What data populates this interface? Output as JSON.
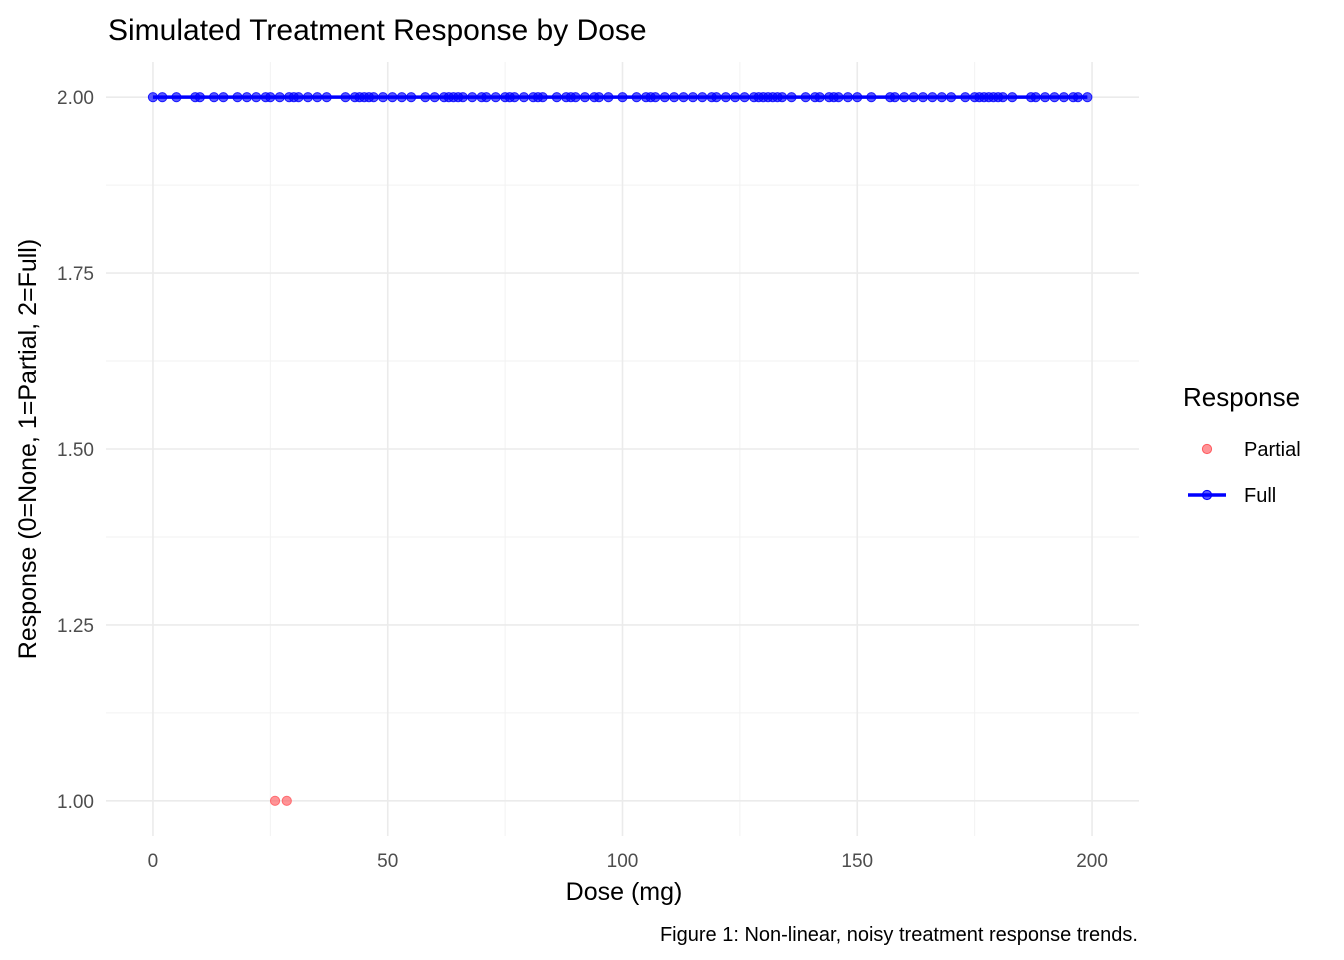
{
  "chart_data": {
    "type": "scatter",
    "title": "Simulated Treatment Response by Dose",
    "xlabel": "Dose (mg)",
    "ylabel": "Response (0=None, 1=Partial, 2=Full)",
    "caption": "Figure 1: Non-linear, noisy treatment response trends.",
    "xlim": [
      -10,
      210
    ],
    "ylim": [
      0.95,
      2.05
    ],
    "x_ticks": [
      0,
      50,
      100,
      150,
      200
    ],
    "x_tick_labels": [
      "0",
      "50",
      "100",
      "150",
      "200"
    ],
    "y_ticks": [
      1.0,
      1.25,
      1.5,
      1.75,
      2.0
    ],
    "y_tick_labels": [
      "1.00",
      "1.25",
      "1.50",
      "1.75",
      "2.00"
    ],
    "grid": true,
    "legend": {
      "title": "Response",
      "position": "right"
    },
    "series": [
      {
        "name": "Partial",
        "color": "#ff5a5f",
        "line": false,
        "x": [
          26,
          28.5
        ],
        "y": [
          1,
          1
        ]
      },
      {
        "name": "Full",
        "color": "#0000ff",
        "line": true,
        "x": [
          0,
          2,
          5,
          9,
          10,
          13,
          15,
          18,
          20,
          22,
          24,
          25,
          27,
          29,
          30,
          31,
          33,
          35,
          37,
          41,
          43,
          44,
          45,
          46,
          47,
          49,
          51,
          53,
          55,
          58,
          60,
          62,
          63,
          64,
          65,
          66,
          68,
          70,
          71,
          73,
          75,
          76,
          77,
          79,
          81,
          82,
          83,
          86,
          88,
          89,
          90,
          92,
          94,
          95,
          97,
          100,
          103,
          105,
          106,
          107,
          109,
          111,
          113,
          115,
          117,
          119,
          120,
          122,
          124,
          126,
          128,
          129,
          130,
          131,
          132,
          133,
          134,
          136,
          139,
          141,
          142,
          144,
          145,
          146,
          148,
          150,
          153,
          157,
          158,
          160,
          162,
          164,
          166,
          168,
          170,
          173,
          175,
          176,
          177,
          178,
          179,
          180,
          181,
          183,
          187,
          188,
          190,
          192,
          194,
          196,
          197,
          199
        ],
        "y": [
          2,
          2,
          2,
          2,
          2,
          2,
          2,
          2,
          2,
          2,
          2,
          2,
          2,
          2,
          2,
          2,
          2,
          2,
          2,
          2,
          2,
          2,
          2,
          2,
          2,
          2,
          2,
          2,
          2,
          2,
          2,
          2,
          2,
          2,
          2,
          2,
          2,
          2,
          2,
          2,
          2,
          2,
          2,
          2,
          2,
          2,
          2,
          2,
          2,
          2,
          2,
          2,
          2,
          2,
          2,
          2,
          2,
          2,
          2,
          2,
          2,
          2,
          2,
          2,
          2,
          2,
          2,
          2,
          2,
          2,
          2,
          2,
          2,
          2,
          2,
          2,
          2,
          2,
          2,
          2,
          2,
          2,
          2,
          2,
          2,
          2,
          2,
          2,
          2,
          2,
          2,
          2,
          2,
          2,
          2,
          2,
          2,
          2,
          2,
          2,
          2,
          2,
          2,
          2,
          2,
          2,
          2,
          2,
          2,
          2,
          2,
          2
        ]
      }
    ]
  }
}
